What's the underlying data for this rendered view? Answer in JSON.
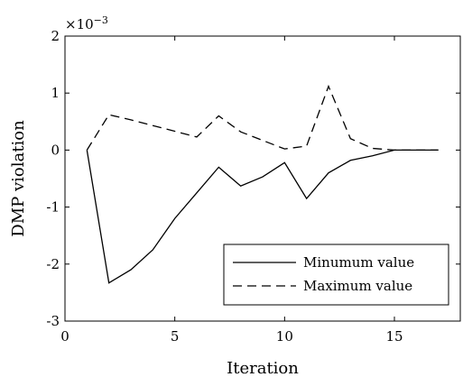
{
  "chart_data": {
    "type": "line",
    "xlabel": "Iteration",
    "ylabel": "DMP violation",
    "y_scale_base": "×10",
    "y_scale_exponent": "−3",
    "xlim": [
      0,
      18
    ],
    "ylim": [
      -3,
      2
    ],
    "x_ticks": [
      0,
      5,
      10,
      15
    ],
    "y_ticks": [
      -3,
      -2,
      -1,
      0,
      1,
      2
    ],
    "x_tick_labels": [
      "0",
      "5",
      "10",
      "15"
    ],
    "y_tick_labels": [
      "-3",
      "-2",
      "-1",
      "0",
      "1",
      "2"
    ],
    "grid": false,
    "legend_position": "bottom-right",
    "x": [
      1,
      2,
      3,
      4,
      5,
      6,
      7,
      8,
      9,
      10,
      11,
      12,
      13,
      14,
      15,
      16,
      17
    ],
    "series": [
      {
        "name": "Minumum value",
        "style": "solid",
        "values": [
          0,
          -2.33,
          -2.1,
          -1.75,
          -1.2,
          -0.75,
          -0.3,
          -0.63,
          -0.47,
          -0.22,
          -0.85,
          -0.4,
          -0.18,
          -0.1,
          0,
          0,
          0
        ]
      },
      {
        "name": "Maximum value",
        "style": "dashed",
        "values": [
          0,
          0.62,
          0.53,
          0.43,
          0.33,
          0.23,
          0.6,
          0.32,
          0.17,
          0.02,
          0.07,
          1.12,
          0.2,
          0.03,
          0,
          0,
          0
        ]
      }
    ]
  }
}
